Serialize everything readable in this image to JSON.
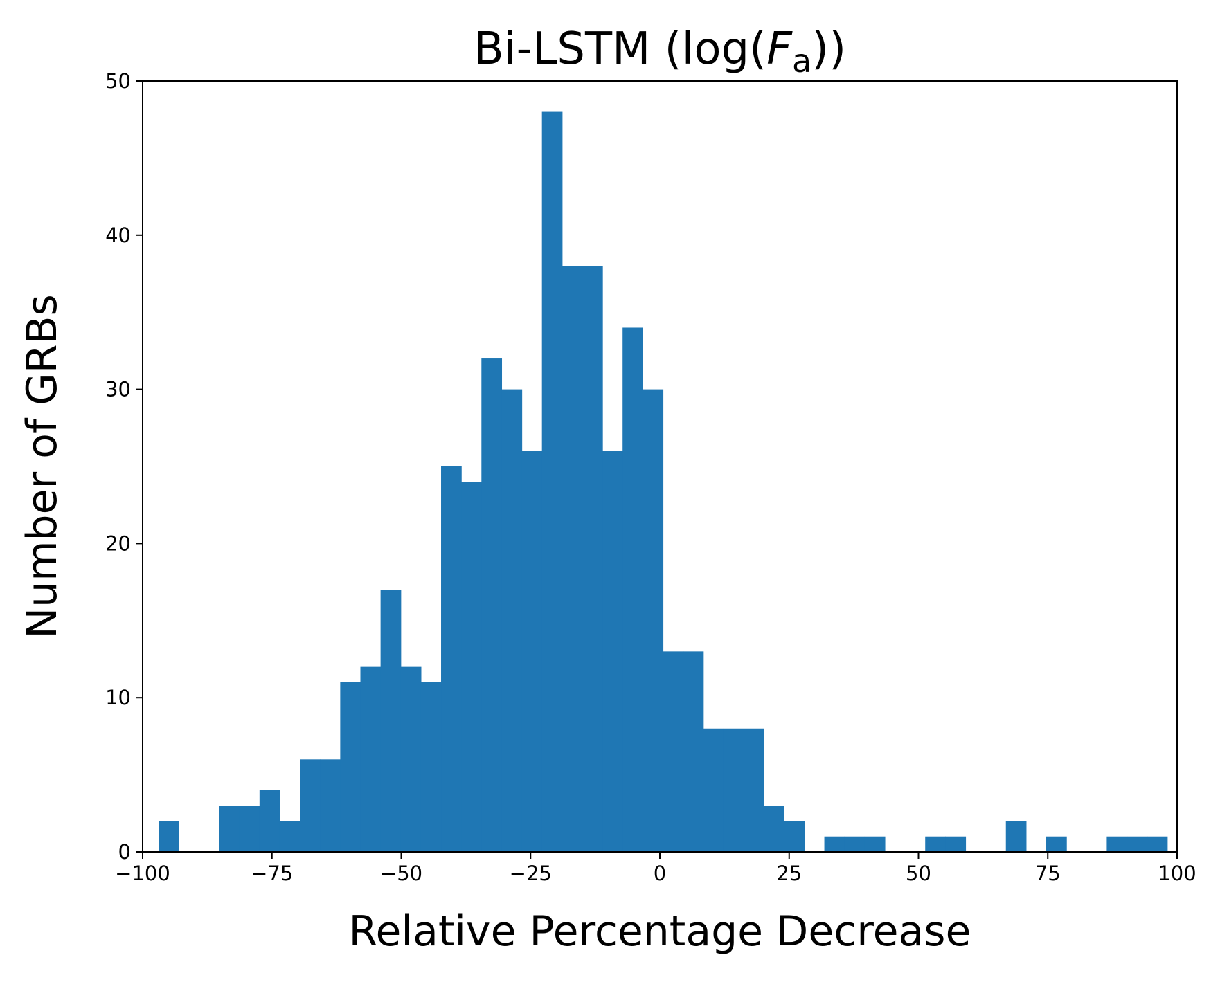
{
  "chart_data": {
    "type": "bar",
    "title": {
      "prefix": "Bi-LSTM (log(",
      "symbol": "F",
      "subscript": "a",
      "suffix": "))"
    },
    "xlabel": "Relative Percentage Decrease",
    "ylabel": "Number of GRBs",
    "xlim": [
      -100,
      100
    ],
    "ylim": [
      0,
      50
    ],
    "xticks": [
      -100,
      -75,
      -50,
      -25,
      0,
      25,
      50,
      75,
      100
    ],
    "xtick_labels": [
      "−100",
      "−75",
      "−50",
      "−25",
      "0",
      "25",
      "50",
      "75",
      "100"
    ],
    "yticks": [
      0,
      10,
      20,
      30,
      40,
      50
    ],
    "ytick_labels": [
      "0",
      "10",
      "20",
      "30",
      "40",
      "50"
    ],
    "bin_edges": [
      -96.9,
      -93.0,
      -89.1,
      -85.2,
      -81.3,
      -77.4,
      -73.5,
      -69.6,
      -65.7,
      -61.8,
      -57.9,
      -54.0,
      -50.1,
      -46.2,
      -42.3,
      -38.4,
      -34.5,
      -30.6,
      -26.7,
      -22.8,
      -18.9,
      -15.0,
      -11.1,
      -7.2,
      -3.3,
      0.6,
      4.5,
      8.4,
      12.3,
      16.2,
      20.1,
      24.0,
      27.9,
      31.8,
      35.7,
      39.6,
      43.5,
      47.4,
      51.3,
      55.2,
      59.1,
      63.0,
      66.9,
      70.8,
      74.7,
      78.6,
      82.5,
      86.4,
      90.3,
      94.2,
      98.1
    ],
    "values": [
      2,
      0,
      0,
      3,
      3,
      4,
      2,
      6,
      6,
      11,
      12,
      17,
      12,
      11,
      25,
      24,
      32,
      30,
      26,
      48,
      38,
      38,
      26,
      34,
      30,
      13,
      13,
      8,
      8,
      8,
      3,
      2,
      0,
      1,
      1,
      1,
      0,
      0,
      1,
      1,
      0,
      0,
      2,
      0,
      1,
      0,
      0,
      1,
      1,
      1
    ],
    "bar_color": "#1f77b4",
    "grid": false,
    "legend": "none"
  }
}
